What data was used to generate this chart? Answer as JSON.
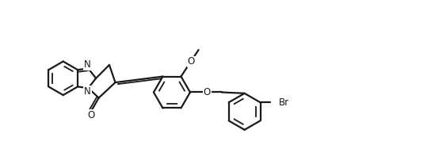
{
  "bg_color": "#ffffff",
  "line_color": "#1a1a1a",
  "line_width": 1.6,
  "font_size": 8.5,
  "xlim": [
    0,
    11.0
  ],
  "ylim": [
    0.0,
    4.5
  ],
  "figsize": [
    5.49,
    2.02
  ],
  "dpi": 100
}
